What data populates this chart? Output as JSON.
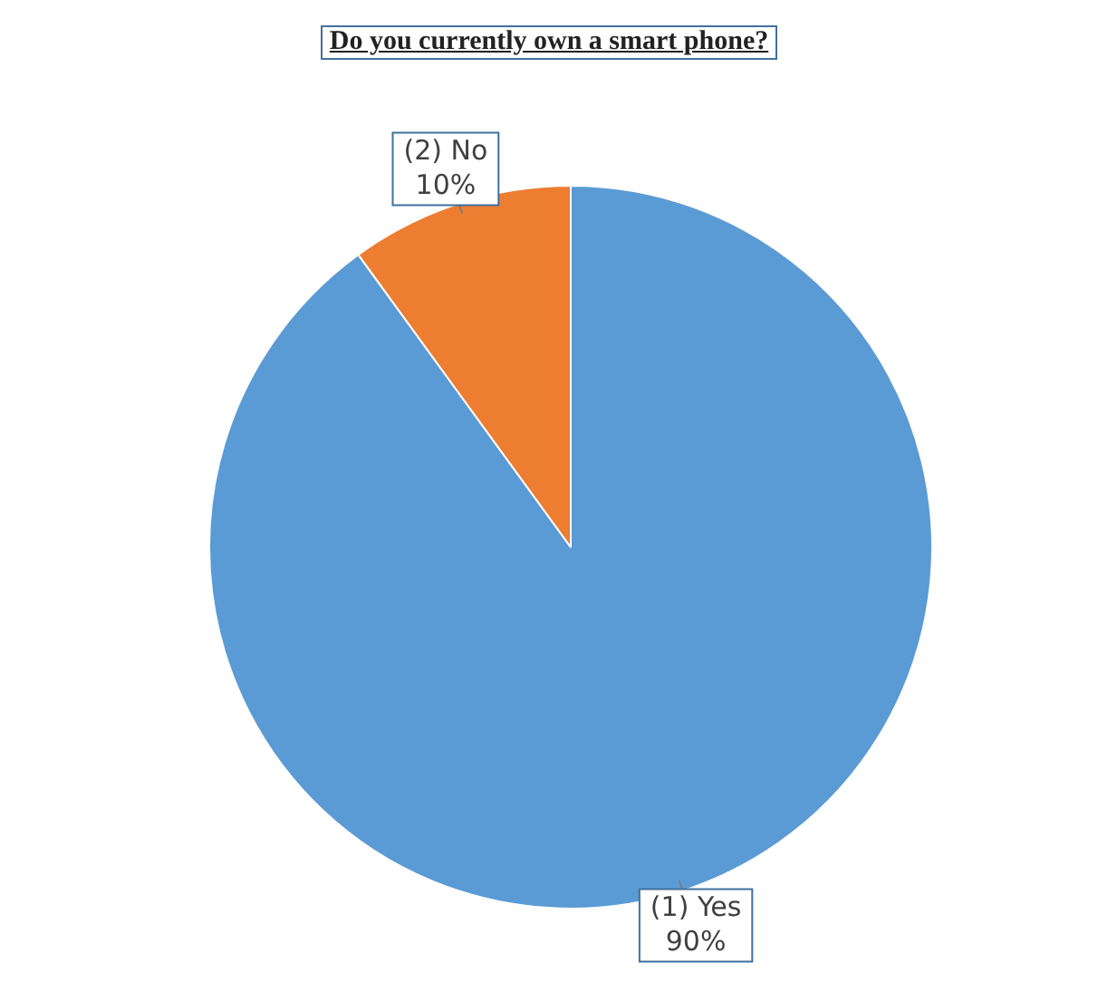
{
  "chart_data": {
    "type": "pie",
    "title": "Do you currently own a smart phone?",
    "categories": [
      "(1) Yes",
      "(2) No"
    ],
    "values": [
      90,
      10
    ],
    "colors": [
      "#5b9bd5",
      "#ed7d31"
    ],
    "value_labels": [
      "90%",
      "10%"
    ],
    "legend": false
  }
}
